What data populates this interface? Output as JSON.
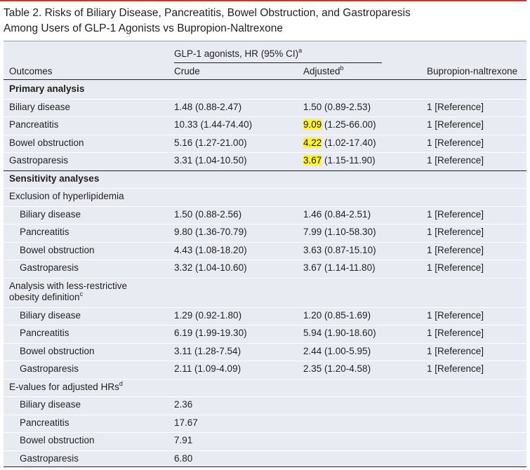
{
  "title_line1": "Table 2. Risks of Biliary Disease, Pancreatitis, Bowel Obstruction, and Gastroparesis",
  "title_line2": "Among Users of GLP-1 Agonists vs Bupropion-Naltrexone",
  "header": {
    "group_label": "GLP-1 agonists, HR (95% CI)",
    "group_sup": "a",
    "col_outcomes": "Outcomes",
    "col_crude": "Crude",
    "col_adjusted": "Adjusted",
    "adjusted_sup": "b",
    "col_bupropion": "Bupropion-naltrexone"
  },
  "rows": [
    {
      "label": "Primary analysis",
      "bold": true
    },
    {
      "label": "Biliary disease",
      "crude": "1.48 (0.88-2.47)",
      "adj_hl": "",
      "adj": "1.50 (0.89-2.53)",
      "ref": "1 [Reference]"
    },
    {
      "label": "Pancreatitis",
      "crude": "10.33 (1.44-74.40)",
      "adj_hl": "9.09",
      "adj": " (1.25-66.00)",
      "ref": "1 [Reference]"
    },
    {
      "label": "Bowel obstruction",
      "crude": "5.16 (1.27-21.00)",
      "adj_hl": "4.22",
      "adj": " (1.02-17.40)",
      "ref": "1 [Reference]"
    },
    {
      "label": "Gastroparesis",
      "crude": "3.31 (1.04-10.50)",
      "adj_hl": "3.67",
      "adj": " (1.15-11.90)",
      "ref": "1 [Reference]"
    },
    {
      "label": "Sensitivity analyses",
      "bold": true
    },
    {
      "label": "Exclusion of hyperlipidemia"
    },
    {
      "label": "Biliary disease",
      "indent": true,
      "crude": "1.50 (0.88-2.56)",
      "adj": "1.46 (0.84-2.51)",
      "ref": "1 [Reference]"
    },
    {
      "label": "Pancreatitis",
      "indent": true,
      "crude": "9.80 (1.36-70.79)",
      "adj": "7.99 (1.10-58.30)",
      "ref": "1 [Reference]"
    },
    {
      "label": "Bowel obstruction",
      "indent": true,
      "crude": "4.43 (1.08-18.20)",
      "adj": "3.63 (0.87-15.10)",
      "ref": "1 [Reference]"
    },
    {
      "label": "Gastroparesis",
      "indent": true,
      "crude": "3.32 (1.04-10.60)",
      "adj": "3.67 (1.14-11.80)",
      "ref": "1 [Reference]"
    },
    {
      "label": "Analysis with less-restrictive",
      "label2": "obesity definition",
      "sup": "c"
    },
    {
      "label": "Biliary disease",
      "indent": true,
      "crude": "1.29 (0.92-1.80)",
      "adj": "1.20 (0.85-1.69)",
      "ref": "1 [Reference]"
    },
    {
      "label": "Pancreatitis",
      "indent": true,
      "crude": "6.19 (1.99-19.30)",
      "adj": "5.94 (1.90-18.60)",
      "ref": "1 [Reference]"
    },
    {
      "label": "Bowel obstruction",
      "indent": true,
      "crude": "3.11 (1.28-7.54)",
      "adj": "2.44 (1.00-5.95)",
      "ref": "1 [Reference]"
    },
    {
      "label": "Gastroparesis",
      "indent": true,
      "crude": "2.11 (1.09-4.09)",
      "adj": "2.35 (1.20-4.58)",
      "ref": "1 [Reference]"
    },
    {
      "label": "E-values for adjusted HRs",
      "sup": "d"
    },
    {
      "label": "Biliary disease",
      "indent": true,
      "crude": "2.36"
    },
    {
      "label": "Pancreatitis",
      "indent": true,
      "crude": "17.67"
    },
    {
      "label": "Bowel obstruction",
      "indent": true,
      "crude": "7.91"
    },
    {
      "label": "Gastroparesis",
      "indent": true,
      "crude": "6.80"
    }
  ]
}
